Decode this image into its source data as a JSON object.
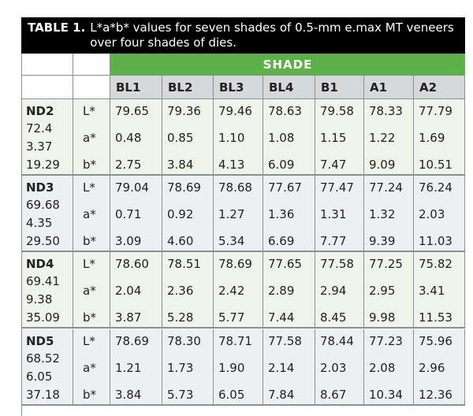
{
  "table": {
    "title": "TABLE 1.",
    "caption": "L*a*b* values for seven shades of 0.5-mm e.max MT veneers over four shades of dies.",
    "group_header": "SHADE",
    "columns": [
      "BL1",
      "BL2",
      "BL3",
      "BL4",
      "B1",
      "A1",
      "A2"
    ],
    "groups": [
      {
        "die": "ND2",
        "die_values": [
          "72.4",
          "3.37",
          "19.29"
        ],
        "rows": [
          {
            "label": "L*",
            "values": [
              "79.65",
              "79.36",
              "79.46",
              "78.63",
              "79.58",
              "78.33",
              "77.79"
            ]
          },
          {
            "label": "a*",
            "values": [
              "0.48",
              "0.85",
              "1.10",
              "1.08",
              "1.15",
              "1.22",
              "1.69"
            ]
          },
          {
            "label": "b*",
            "values": [
              "2.75",
              "3.84",
              "4.13",
              "6.09",
              "7.47",
              "9.09",
              "10.51"
            ]
          }
        ]
      },
      {
        "die": "ND3",
        "die_values": [
          "69.68",
          "4.35",
          "29.50"
        ],
        "rows": [
          {
            "label": "L*",
            "values": [
              "79.04",
              "78.69",
              "78.68",
              "77.67",
              "77.47",
              "77.24",
              "76.24"
            ]
          },
          {
            "label": "a*",
            "values": [
              "0.71",
              "0.92",
              "1.27",
              "1.36",
              "1.31",
              "1.32",
              "2.03"
            ]
          },
          {
            "label": "b*",
            "values": [
              "3.09",
              "4.60",
              "5.34",
              "6.69",
              "7.77",
              "9.39",
              "11.03"
            ]
          }
        ]
      },
      {
        "die": "ND4",
        "die_values": [
          "69.41",
          "9.38",
          "35.09"
        ],
        "rows": [
          {
            "label": "L*",
            "values": [
              "78.60",
              "78.51",
              "78.69",
              "77.65",
              "77.58",
              "77.25",
              "75.82"
            ]
          },
          {
            "label": "a*",
            "values": [
              "2.04",
              "2.36",
              "2.42",
              "2.89",
              "2.94",
              "2.95",
              "3.41"
            ]
          },
          {
            "label": "b*",
            "values": [
              "3.87",
              "5.28",
              "5.77",
              "7.44",
              "8.45",
              "9.98",
              "11.53"
            ]
          }
        ]
      },
      {
        "die": "ND5",
        "die_values": [
          "68.52",
          "6.05",
          "37.18"
        ],
        "rows": [
          {
            "label": "L*",
            "values": [
              "78.69",
              "78.30",
              "78.71",
              "77.58",
              "78.44",
              "77.23",
              "75.96"
            ]
          },
          {
            "label": "a*",
            "values": [
              "1.21",
              "1.73",
              "1.90",
              "2.14",
              "2.03",
              "2.08",
              "2.96"
            ]
          },
          {
            "label": "b*",
            "values": [
              "3.84",
              "5.73",
              "6.05",
              "7.84",
              "8.67",
              "10.34",
              "12.36"
            ]
          }
        ]
      }
    ]
  }
}
